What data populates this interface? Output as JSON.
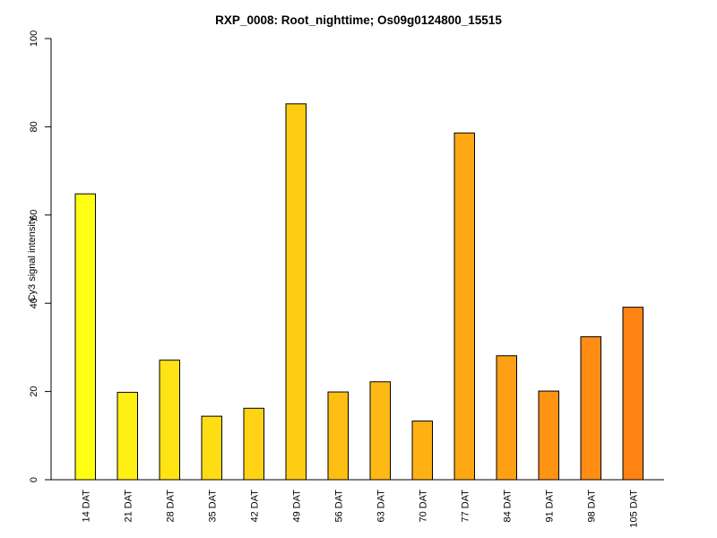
{
  "chart_data": {
    "type": "bar",
    "title": "RXP_0008: Root_nighttime; Os09g0124800_15515",
    "xlabel": "",
    "ylabel": "Cy3 signal intensity",
    "ylim": [
      0,
      100
    ],
    "yticks": [
      0,
      20,
      40,
      60,
      80,
      100
    ],
    "grid": false,
    "categories": [
      "14 DAT",
      "21 DAT",
      "28 DAT",
      "35 DAT",
      "42 DAT",
      "49 DAT",
      "56 DAT",
      "63 DAT",
      "70 DAT",
      "77 DAT",
      "84 DAT",
      "91 DAT",
      "98 DAT",
      "105 DAT"
    ],
    "values": [
      64.8,
      19.8,
      27.1,
      14.4,
      16.2,
      85.2,
      19.9,
      22.2,
      13.3,
      78.6,
      28.1,
      20.1,
      32.4,
      39.1
    ],
    "colors": [
      "#ffff14",
      "#fff014",
      "#ffe314",
      "#ffdd14",
      "#ffd314",
      "#ffcc14",
      "#ffbe14",
      "#ffb914",
      "#ffb114",
      "#ffa814",
      "#ff9f14",
      "#ff9414",
      "#ff8d14",
      "#ff8314"
    ]
  }
}
